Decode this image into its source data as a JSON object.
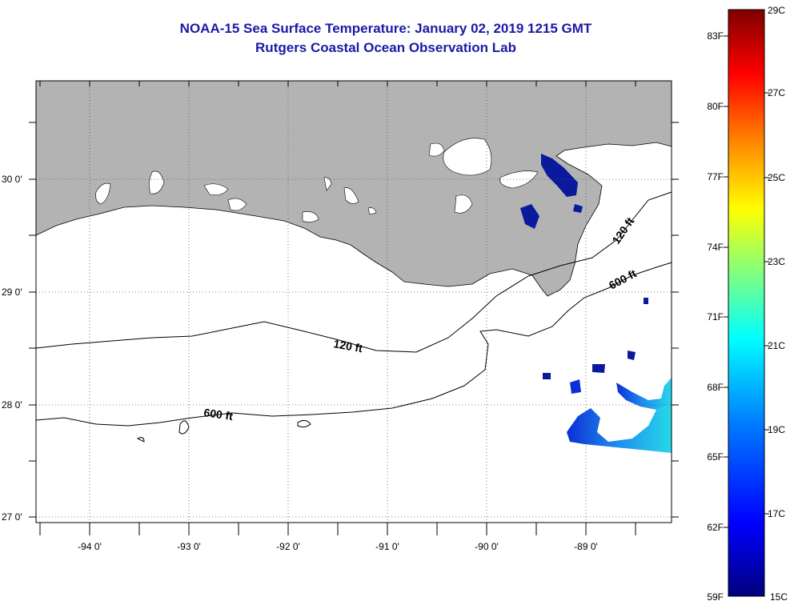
{
  "title": {
    "line1": "NOAA-15 Sea Surface Temperature:  January 02, 2019 1215 GMT",
    "line2": "Rutgers Coastal Ocean Observation Lab"
  },
  "map": {
    "lat_labels": [
      "30 0'",
      "29 0'",
      "28 0'",
      "27 0'"
    ],
    "lon_labels": [
      "-94 0'",
      "-93 0'",
      "-92 0'",
      "-91 0'",
      "-90 0'",
      "-89 0'"
    ],
    "contour_labels": [
      "120 ft",
      "600 ft",
      "120 ft",
      "600 ft"
    ],
    "colors": {
      "land": "#b3b3b3",
      "water": "#ffffff",
      "title": "#1a1aa6"
    }
  },
  "colorbar": {
    "fahrenheit": [
      "83F",
      "80F",
      "77F",
      "74F",
      "71F",
      "68F",
      "65F",
      "62F",
      "59F"
    ],
    "celsius": [
      "29C",
      "27C",
      "25C",
      "23C",
      "21C",
      "19C",
      "17C",
      "15C"
    ],
    "stops": [
      "#00007f",
      "#0000ff",
      "#0080ff",
      "#00ffff",
      "#80ff80",
      "#ffff00",
      "#ff8000",
      "#ff0000",
      "#7f0000"
    ]
  }
}
